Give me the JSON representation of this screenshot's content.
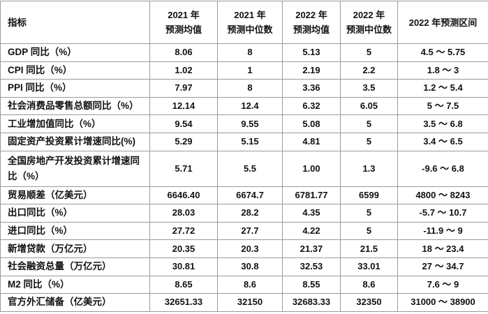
{
  "table": {
    "header": [
      "指标",
      "2021 年\n预测均值",
      "2021 年\n预测中位数",
      "2022 年\n预测均值",
      "2022 年\n预测中位数",
      "2022 年预测区间"
    ],
    "rows": [
      [
        "GDP 同比（%）",
        "8.06",
        "8",
        "5.13",
        "5",
        "4.5 ～ 5.75"
      ],
      [
        "CPI 同比（%）",
        "1.02",
        "1",
        "2.19",
        "2.2",
        "1.8 ～ 3"
      ],
      [
        "PPI 同比（%）",
        "7.97",
        "8",
        "3.36",
        "3.5",
        "1.2 ～ 5.4"
      ],
      [
        "社会消费品零售总额同比（%）",
        "12.14",
        "12.4",
        "6.32",
        "6.05",
        "5 ～ 7.5"
      ],
      [
        "工业增加值同比（%）",
        "9.54",
        "9.55",
        "5.08",
        "5",
        "3.5 ～ 6.8"
      ],
      [
        "固定资产投资累计增速同比(%)",
        "5.29",
        "5.15",
        "4.81",
        "5",
        "3.4 ～ 6.5"
      ],
      [
        "全国房地产开发投资累计增速同比（%）",
        "5.71",
        "5.5",
        "1.00",
        "1.3",
        "-9.6 ～ 6.8"
      ],
      [
        "贸易顺差（亿美元）",
        "6646.40",
        "6674.7",
        "6781.77",
        "6599",
        "4800 ～ 8243"
      ],
      [
        "出口同比（%）",
        "28.03",
        "28.2",
        "4.35",
        "5",
        "-5.7 ～ 10.7"
      ],
      [
        "进口同比（%）",
        "27.72",
        "27.7",
        "4.22",
        "5",
        "-11.9 ～ 9"
      ],
      [
        "新增贷款（万亿元）",
        "20.35",
        "20.3",
        "21.37",
        "21.5",
        "18 ～ 23.4"
      ],
      [
        "社会融资总量（万亿元）",
        "30.81",
        "30.8",
        "32.53",
        "33.01",
        "27 ～ 34.7"
      ],
      [
        "M2 同比（%）",
        "8.65",
        "8.6",
        "8.55",
        "8.6",
        "7.6 ～ 9"
      ],
      [
        "官方外汇储备（亿美元）",
        "32651.33",
        "32150",
        "32683.33",
        "32350",
        "31000 ～ 38900"
      ]
    ]
  }
}
